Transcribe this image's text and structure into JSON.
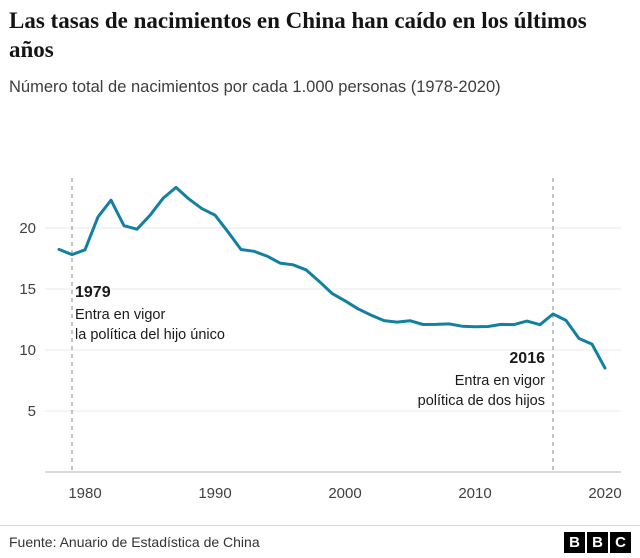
{
  "header": {
    "title": "Las tasas de nacimientos en China han caído en los últimos años",
    "subtitle": "Número total de nacimientos por cada 1.000 personas (1978-2020)"
  },
  "chart_data": {
    "type": "line",
    "title": "Las tasas de nacimientos en China han caído en los últimos años",
    "ylabel": "Nacimientos por cada 1.000 personas",
    "xlabel": "",
    "xlim": [
      1978,
      2020
    ],
    "ylim": [
      0,
      24
    ],
    "y_ticks": [
      5,
      10,
      15,
      20
    ],
    "x_ticks": [
      1980,
      1990,
      2000,
      2010,
      2020
    ],
    "grid": "horizontal",
    "legend": "none",
    "line_color": "#1380A1",
    "x": [
      1978,
      1979,
      1980,
      1981,
      1982,
      1983,
      1984,
      1985,
      1986,
      1987,
      1988,
      1989,
      1990,
      1991,
      1992,
      1993,
      1994,
      1995,
      1996,
      1997,
      1998,
      1999,
      2000,
      2001,
      2002,
      2003,
      2004,
      2005,
      2006,
      2007,
      2008,
      2009,
      2010,
      2011,
      2012,
      2013,
      2014,
      2015,
      2016,
      2017,
      2018,
      2019,
      2020
    ],
    "values": [
      18.25,
      17.82,
      18.21,
      20.91,
      22.28,
      20.19,
      19.9,
      21.04,
      22.43,
      23.33,
      22.37,
      21.58,
      21.06,
      19.68,
      18.24,
      18.09,
      17.7,
      17.12,
      16.98,
      16.57,
      15.64,
      14.64,
      14.03,
      13.38,
      12.86,
      12.41,
      12.29,
      12.4,
      12.09,
      12.1,
      12.14,
      11.95,
      11.9,
      11.93,
      12.1,
      12.08,
      12.37,
      12.07,
      12.95,
      12.43,
      10.94,
      10.48,
      8.52
    ],
    "annotations": [
      {
        "year": 1979,
        "label": "1979",
        "text_lines": [
          "Entra en vigor",
          "la política del hijo único"
        ]
      },
      {
        "year": 2016,
        "label": "2016",
        "text_lines": [
          "Entra en vigor",
          "política de dos hijos"
        ]
      }
    ]
  },
  "footer": {
    "source": "Fuente: Anuario de Estadística de China",
    "logo_letters": [
      "B",
      "B",
      "C"
    ]
  }
}
